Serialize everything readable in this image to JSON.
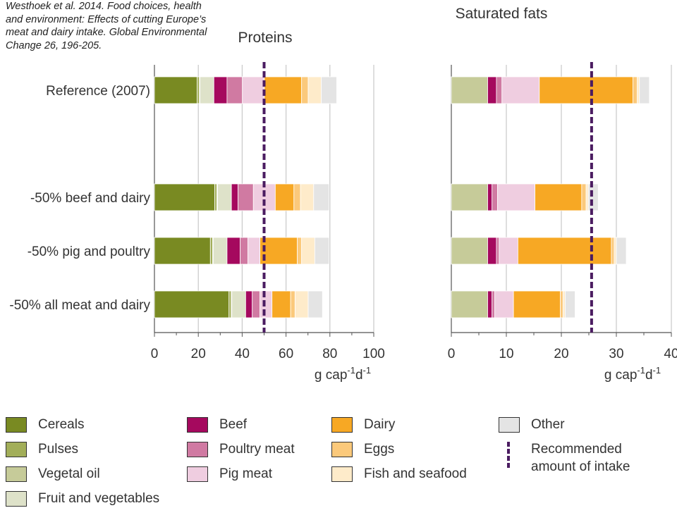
{
  "citation": "Westhoek et al. 2014. Food choices, health and environment: Effects of cutting Europe’s meat and dairy intake. Global Environmental Change 26, 196-205.",
  "chart_data": [
    {
      "type": "bar",
      "orientation": "horizontal-stacked",
      "title": "Proteins",
      "xlabel": "g cap-1d-1",
      "xlabel_base": "g cap",
      "xlabel_sup1": "-1",
      "xlabel_mid": "d",
      "xlabel_sup2": "-1",
      "xlim": [
        0,
        100
      ],
      "xticks": [
        "0",
        "20",
        "40",
        "60",
        "80",
        "100"
      ],
      "recommended": 50,
      "categories": [
        "Reference (2007)",
        "-50% beef and dairy",
        "-50% pig and poultry",
        "-50% all meat and dairy"
      ],
      "series": [
        {
          "name": "Cereals",
          "values": [
            19.5,
            27.5,
            25.5,
            34
          ]
        },
        {
          "name": "Pulses",
          "values": [
            1,
            1,
            1,
            1
          ]
        },
        {
          "name": "Vegetal oil",
          "values": [
            0.3,
            0.3,
            0.3,
            0.3
          ]
        },
        {
          "name": "Fruit and vegetables",
          "values": [
            6.3,
            6.3,
            6.3,
            6.3
          ]
        },
        {
          "name": "Beef",
          "values": [
            6,
            3,
            6,
            3
          ]
        },
        {
          "name": "Poultry meat",
          "values": [
            7,
            7,
            3.5,
            3.5
          ]
        },
        {
          "name": "Pig meat",
          "values": [
            10,
            10,
            5.5,
            5.5
          ]
        },
        {
          "name": "Dairy",
          "values": [
            17,
            8.5,
            17,
            8.5
          ]
        },
        {
          "name": "Eggs",
          "values": [
            3,
            3,
            2,
            2
          ]
        },
        {
          "name": "Fish and seafood",
          "values": [
            6,
            6,
            6,
            6
          ]
        },
        {
          "name": "Other",
          "values": [
            7,
            7,
            6.5,
            6.5
          ]
        }
      ]
    },
    {
      "type": "bar",
      "orientation": "horizontal-stacked",
      "title": "Saturated fats",
      "xlabel": "g cap-1d-1",
      "xlabel_base": "g cap",
      "xlabel_sup1": "-1",
      "xlabel_mid": "d",
      "xlabel_sup2": "-1",
      "xlim": [
        0,
        40
      ],
      "xticks": [
        "0",
        "10",
        "20",
        "30",
        "40"
      ],
      "recommended": 25.5,
      "categories": [
        "Reference (2007)",
        "-50% beef and dairy",
        "-50% pig and poultry",
        "-50% all meat and dairy"
      ],
      "series": [
        {
          "name": "Cereals",
          "values": [
            0,
            0,
            0,
            0
          ]
        },
        {
          "name": "Pulses",
          "values": [
            0,
            0,
            0,
            0
          ]
        },
        {
          "name": "Vegetal oil",
          "values": [
            6.6,
            6.6,
            6.6,
            6.6
          ]
        },
        {
          "name": "Fruit and vegetables",
          "values": [
            0,
            0,
            0,
            0
          ]
        },
        {
          "name": "Beef",
          "values": [
            1.6,
            0.8,
            1.6,
            0.8
          ]
        },
        {
          "name": "Poultry meat",
          "values": [
            1,
            1,
            0.5,
            0.5
          ]
        },
        {
          "name": "Pig meat",
          "values": [
            6.8,
            6.8,
            3.4,
            3.4
          ]
        },
        {
          "name": "Dairy",
          "values": [
            17,
            8.5,
            17,
            8.5
          ]
        },
        {
          "name": "Eggs",
          "values": [
            0.8,
            0.8,
            0.5,
            0.5
          ]
        },
        {
          "name": "Fish and seafood",
          "values": [
            0.4,
            0.4,
            0.4,
            0.4
          ]
        },
        {
          "name": "Other",
          "values": [
            1.8,
            1.8,
            1.8,
            1.8
          ]
        }
      ]
    }
  ],
  "legend": {
    "items": [
      {
        "name": "Cereals",
        "color": "#798a22"
      },
      {
        "name": "Pulses",
        "color": "#a2ae59"
      },
      {
        "name": "Vegetal oil",
        "color": "#c6cb99"
      },
      {
        "name": "Fruit and vegetables",
        "color": "#dee2c9"
      },
      {
        "name": "Beef",
        "color": "#a5095e"
      },
      {
        "name": "Poultry meat",
        "color": "#d07aa2"
      },
      {
        "name": "Pig meat",
        "color": "#efcde0"
      },
      {
        "name": "Dairy",
        "color": "#f7a824"
      },
      {
        "name": "Eggs",
        "color": "#fbc97b"
      },
      {
        "name": "Fish and seafood",
        "color": "#feebca"
      },
      {
        "name": "Other",
        "color": "#e4e4e4"
      }
    ],
    "recommended_label_line1": "Recommended",
    "recommended_label_line2": "amount of intake"
  },
  "colors": {
    "recommended_line": "#4b1c61",
    "grid": "#c8c8c8",
    "axis": "#555555",
    "text": "#333333"
  }
}
